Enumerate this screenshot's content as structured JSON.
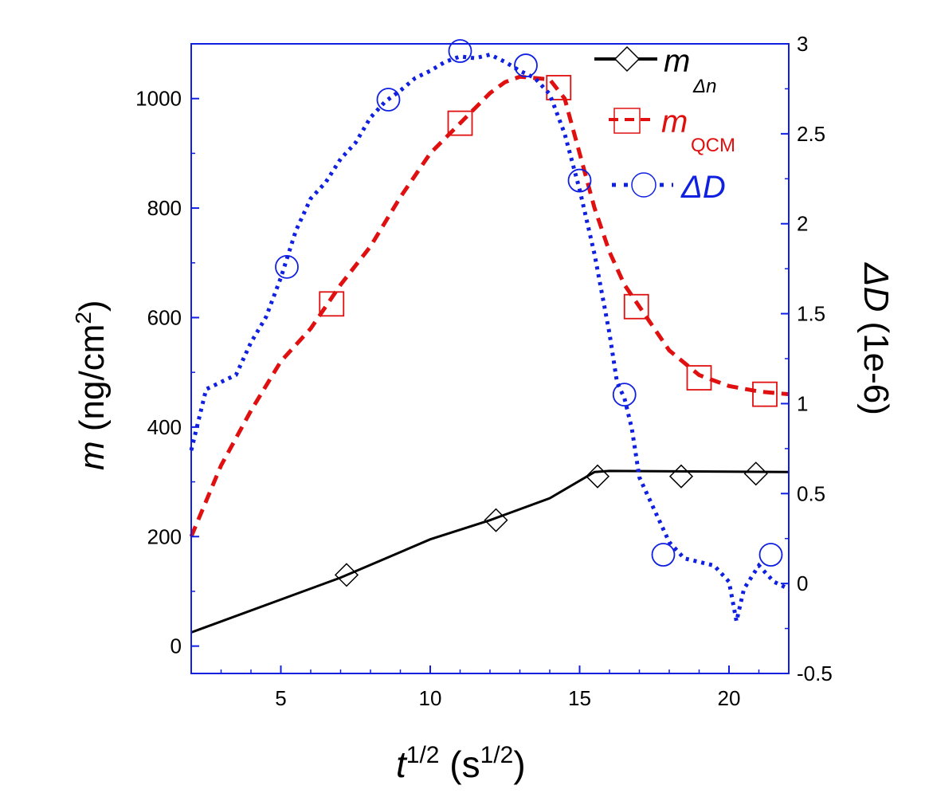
{
  "chart_data": {
    "type": "line",
    "xlabel": "t^1/2 (s^1/2)",
    "xlabel_parts": {
      "base": "t",
      "sup": "1/2",
      "unit": "(s",
      "unit_sup": "1/2",
      "close": ")"
    },
    "ylabel_left": {
      "italic": "m",
      "rest": " (ng/cm",
      "sup": "2",
      "close": ")"
    },
    "ylabel_right": {
      "italic": "ΔD",
      "rest": " (1e-6)"
    },
    "xlim": [
      2,
      22
    ],
    "ylim_left": [
      -50,
      1100
    ],
    "ylim_right": [
      -0.5,
      3
    ],
    "xticks": [
      "5",
      "10",
      "15",
      "20"
    ],
    "xtick_values": [
      5,
      10,
      15,
      20
    ],
    "yticks_left": [
      "0",
      "200",
      "400",
      "600",
      "800",
      "1000"
    ],
    "ytick_values_left": [
      0,
      200,
      400,
      600,
      800,
      1000
    ],
    "yticks_right": [
      "-0.5",
      "0",
      "0.5",
      "1",
      "1.5",
      "2",
      "2.5",
      "3"
    ],
    "ytick_values_right": [
      -0.5,
      0,
      0.5,
      1,
      1.5,
      2,
      2.5,
      3
    ],
    "legend": {
      "placement": "top-right",
      "entries": [
        {
          "main": "m",
          "sub": "Δn"
        },
        {
          "main": "m",
          "sub": "QCM"
        },
        {
          "main": "ΔD",
          "sub": ""
        }
      ]
    },
    "series": [
      {
        "name": "m_Δn",
        "axis": "left",
        "color": "#000000",
        "style": "solid",
        "marker": "diamond",
        "x": [
          2,
          7,
          10,
          12,
          14,
          15.5,
          16,
          22
        ],
        "y": [
          25,
          125,
          195,
          230,
          270,
          318,
          320,
          318
        ],
        "marker_x": [
          7.2,
          12.2,
          15.6,
          18.4,
          20.9
        ],
        "marker_y": [
          130,
          230,
          310,
          310,
          315
        ]
      },
      {
        "name": "m_QCM",
        "axis": "left",
        "color": "#e01010",
        "style": "dashed",
        "marker": "square",
        "x": [
          2,
          3,
          4,
          5,
          6,
          7,
          8,
          9,
          10,
          11,
          12,
          12.5,
          13,
          14,
          14.5,
          15,
          15.5,
          16,
          16.5,
          17,
          17.5,
          18,
          19,
          20,
          21,
          22
        ],
        "y": [
          200,
          330,
          430,
          520,
          580,
          660,
          730,
          820,
          900,
          955,
          1010,
          1030,
          1040,
          1035,
          1000,
          900,
          800,
          720,
          660,
          620,
          580,
          540,
          495,
          475,
          465,
          460
        ],
        "marker_x": [
          6.7,
          11.0,
          14.3,
          16.9,
          19.0,
          21.2
        ],
        "marker_y": [
          625,
          955,
          1020,
          620,
          490,
          460
        ]
      },
      {
        "name": "ΔD",
        "axis": "right",
        "color": "#1020e0",
        "style": "dotted",
        "marker": "circle",
        "x": [
          2,
          2.5,
          3,
          3.5,
          4,
          4.5,
          5,
          5.5,
          6,
          6.5,
          7,
          7.5,
          8,
          8.5,
          9,
          9.5,
          10,
          10.5,
          11,
          11.5,
          12,
          12.5,
          13,
          13.5,
          14,
          14.5,
          15,
          15.5,
          16,
          16.25,
          16.5,
          16.75,
          17,
          17.25,
          17.5,
          17.75,
          18,
          18.5,
          19,
          19.5,
          20,
          20.25,
          20.5,
          21,
          21.5,
          22
        ],
        "y": [
          0.74,
          1.08,
          1.12,
          1.16,
          1.34,
          1.48,
          1.7,
          1.96,
          2.14,
          2.23,
          2.36,
          2.45,
          2.59,
          2.68,
          2.74,
          2.81,
          2.85,
          2.9,
          2.93,
          2.92,
          2.94,
          2.9,
          2.85,
          2.81,
          2.72,
          2.5,
          2.19,
          1.83,
          1.39,
          1.12,
          1.03,
          0.86,
          0.59,
          0.5,
          0.41,
          0.32,
          0.23,
          0.14,
          0.12,
          0.1,
          0.01,
          -0.21,
          -0.03,
          0.1,
          0.01,
          -0.03
        ],
        "marker_x": [
          5.2,
          8.6,
          11.0,
          13.2,
          15.0,
          16.5,
          17.8,
          21.4
        ],
        "marker_y": [
          1.76,
          2.69,
          2.96,
          2.88,
          2.24,
          1.05,
          0.16,
          0.16
        ]
      }
    ]
  }
}
